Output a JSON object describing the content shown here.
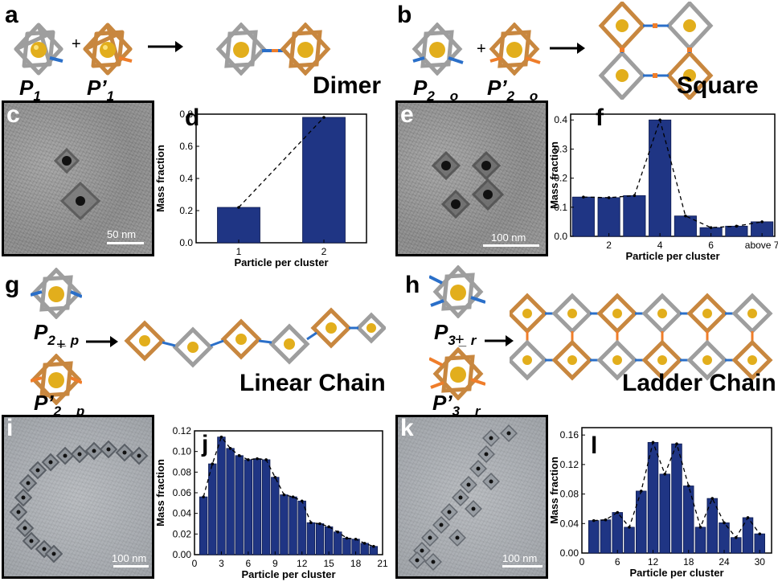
{
  "panel_labels": {
    "a": "a",
    "b": "b",
    "c": "c",
    "d": "d",
    "e": "e",
    "f": "f",
    "g": "g",
    "h": "h",
    "i": "i",
    "j": "j",
    "k": "k",
    "l": "l"
  },
  "structure_names": {
    "dimer": "Dimer",
    "square": "Square",
    "linear": "Linear Chain",
    "ladder": "Ladder Chain"
  },
  "components": {
    "a_left": {
      "base": "P",
      "sub": "1"
    },
    "a_right": {
      "base": "P’",
      "sub": "1"
    },
    "b_left": {
      "base": "P",
      "sub": "2 _ o"
    },
    "b_right": {
      "base": "P’",
      "sub": "2 _ o"
    },
    "g_top": {
      "base": "P",
      "sub": "2 _ p"
    },
    "g_bottom": {
      "base": "P’",
      "sub": "2 _ p"
    },
    "h_top": {
      "base": "P",
      "sub": "3 _ r"
    },
    "h_bottom": {
      "base": "P’",
      "sub": "3 _ r"
    }
  },
  "plus_sign": "+",
  "scale_bars": {
    "c": "50 nm",
    "e": "100 nm",
    "i": "100 nm",
    "k": "100 nm"
  },
  "colors": {
    "bar": "#1f3584",
    "gray_frame": "#a0a0a0",
    "orange_frame": "#c98a43",
    "gold": "#e0b020",
    "blue_link": "#2a6fc9",
    "orange_link": "#ef7d2a"
  },
  "chart_data": [
    {
      "id": "d",
      "type": "bar",
      "categories": [
        "1",
        "2"
      ],
      "values": [
        0.22,
        0.78
      ],
      "xlabel": "Particle per cluster",
      "ylabel": "Mass fraction",
      "ylim": [
        0,
        0.8
      ],
      "yticks": [
        "0.0",
        "0.2",
        "0.4",
        "0.6",
        "0.8"
      ],
      "xticks": [
        "1",
        "2"
      ],
      "trend": "dashed"
    },
    {
      "id": "f",
      "type": "bar",
      "categories": [
        "1",
        "2",
        "3",
        "4",
        "5",
        "6",
        "7",
        "above 7"
      ],
      "values": [
        0.135,
        0.133,
        0.14,
        0.4,
        0.07,
        0.03,
        0.035,
        0.05
      ],
      "xlabel": "Particle per cluster",
      "ylabel": "Mass fraction",
      "ylim": [
        0,
        0.42
      ],
      "yticks": [
        "0.0",
        "0.1",
        "0.2",
        "0.3",
        "0.4"
      ],
      "xticks": [
        "2",
        "4",
        "6",
        "above 7"
      ],
      "trend": "dashed"
    },
    {
      "id": "j",
      "type": "bar",
      "x": [
        1,
        2,
        3,
        4,
        5,
        6,
        7,
        8,
        9,
        10,
        11,
        12,
        13,
        14,
        15,
        16,
        17,
        18,
        19,
        20
      ],
      "values": [
        0.056,
        0.088,
        0.114,
        0.103,
        0.096,
        0.092,
        0.093,
        0.092,
        0.075,
        0.058,
        0.056,
        0.052,
        0.031,
        0.03,
        0.027,
        0.022,
        0.016,
        0.015,
        0.011,
        0.008
      ],
      "xlabel": "Particle per cluster",
      "ylabel": "Mass fraction",
      "ylim": [
        0,
        0.12
      ],
      "xlim": [
        0,
        21
      ],
      "yticks": [
        "0.00",
        "0.02",
        "0.04",
        "0.06",
        "0.08",
        "0.10",
        "0.12"
      ],
      "xticks": [
        "0",
        "3",
        "6",
        "9",
        "12",
        "15",
        "18",
        "21"
      ],
      "trend": "dashed"
    },
    {
      "id": "l",
      "type": "bar",
      "x": [
        2,
        4,
        6,
        8,
        10,
        12,
        14,
        16,
        18,
        20,
        22,
        24,
        26,
        28,
        30
      ],
      "values": [
        0.044,
        0.045,
        0.055,
        0.035,
        0.084,
        0.15,
        0.107,
        0.148,
        0.091,
        0.035,
        0.074,
        0.041,
        0.021,
        0.048,
        0.026
      ],
      "xlabel": "Particle per cluster",
      "ylabel": "Mass fraction",
      "ylim": [
        0,
        0.17
      ],
      "xlim": [
        0,
        32
      ],
      "yticks": [
        "0.00",
        "0.04",
        "0.08",
        "0.12",
        "0.16"
      ],
      "xticks": [
        "0",
        "6",
        "12",
        "18",
        "24",
        "30"
      ],
      "trend": "dashed"
    }
  ]
}
